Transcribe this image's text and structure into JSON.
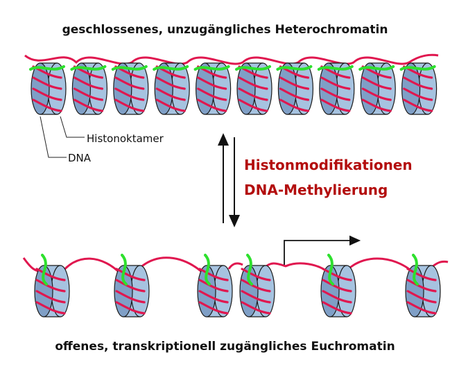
{
  "labels": {
    "top_title": "geschlossenes, unzugängliches Heterochromatin",
    "bottom_title": "offenes, transkriptionell zugängliches Euchromatin",
    "histone": "Histonoktamer",
    "dna": "DNA",
    "modification_1": "Histonmodifikationen",
    "modification_2": "DNA-Methylierung"
  },
  "colors": {
    "histone_front": "#7f9fc6",
    "histone_back": "#a6c3e0",
    "histone_outline": "#1a1a1a",
    "dna_strand": "#e0174f",
    "histone_tail": "#2ee02e",
    "modification_text": "#b30d0d"
  },
  "icons": {
    "up_arrow": "arrow-up-icon",
    "down_arrow": "arrow-down-icon",
    "transcription_start": "transcription-start-arrow-icon"
  }
}
